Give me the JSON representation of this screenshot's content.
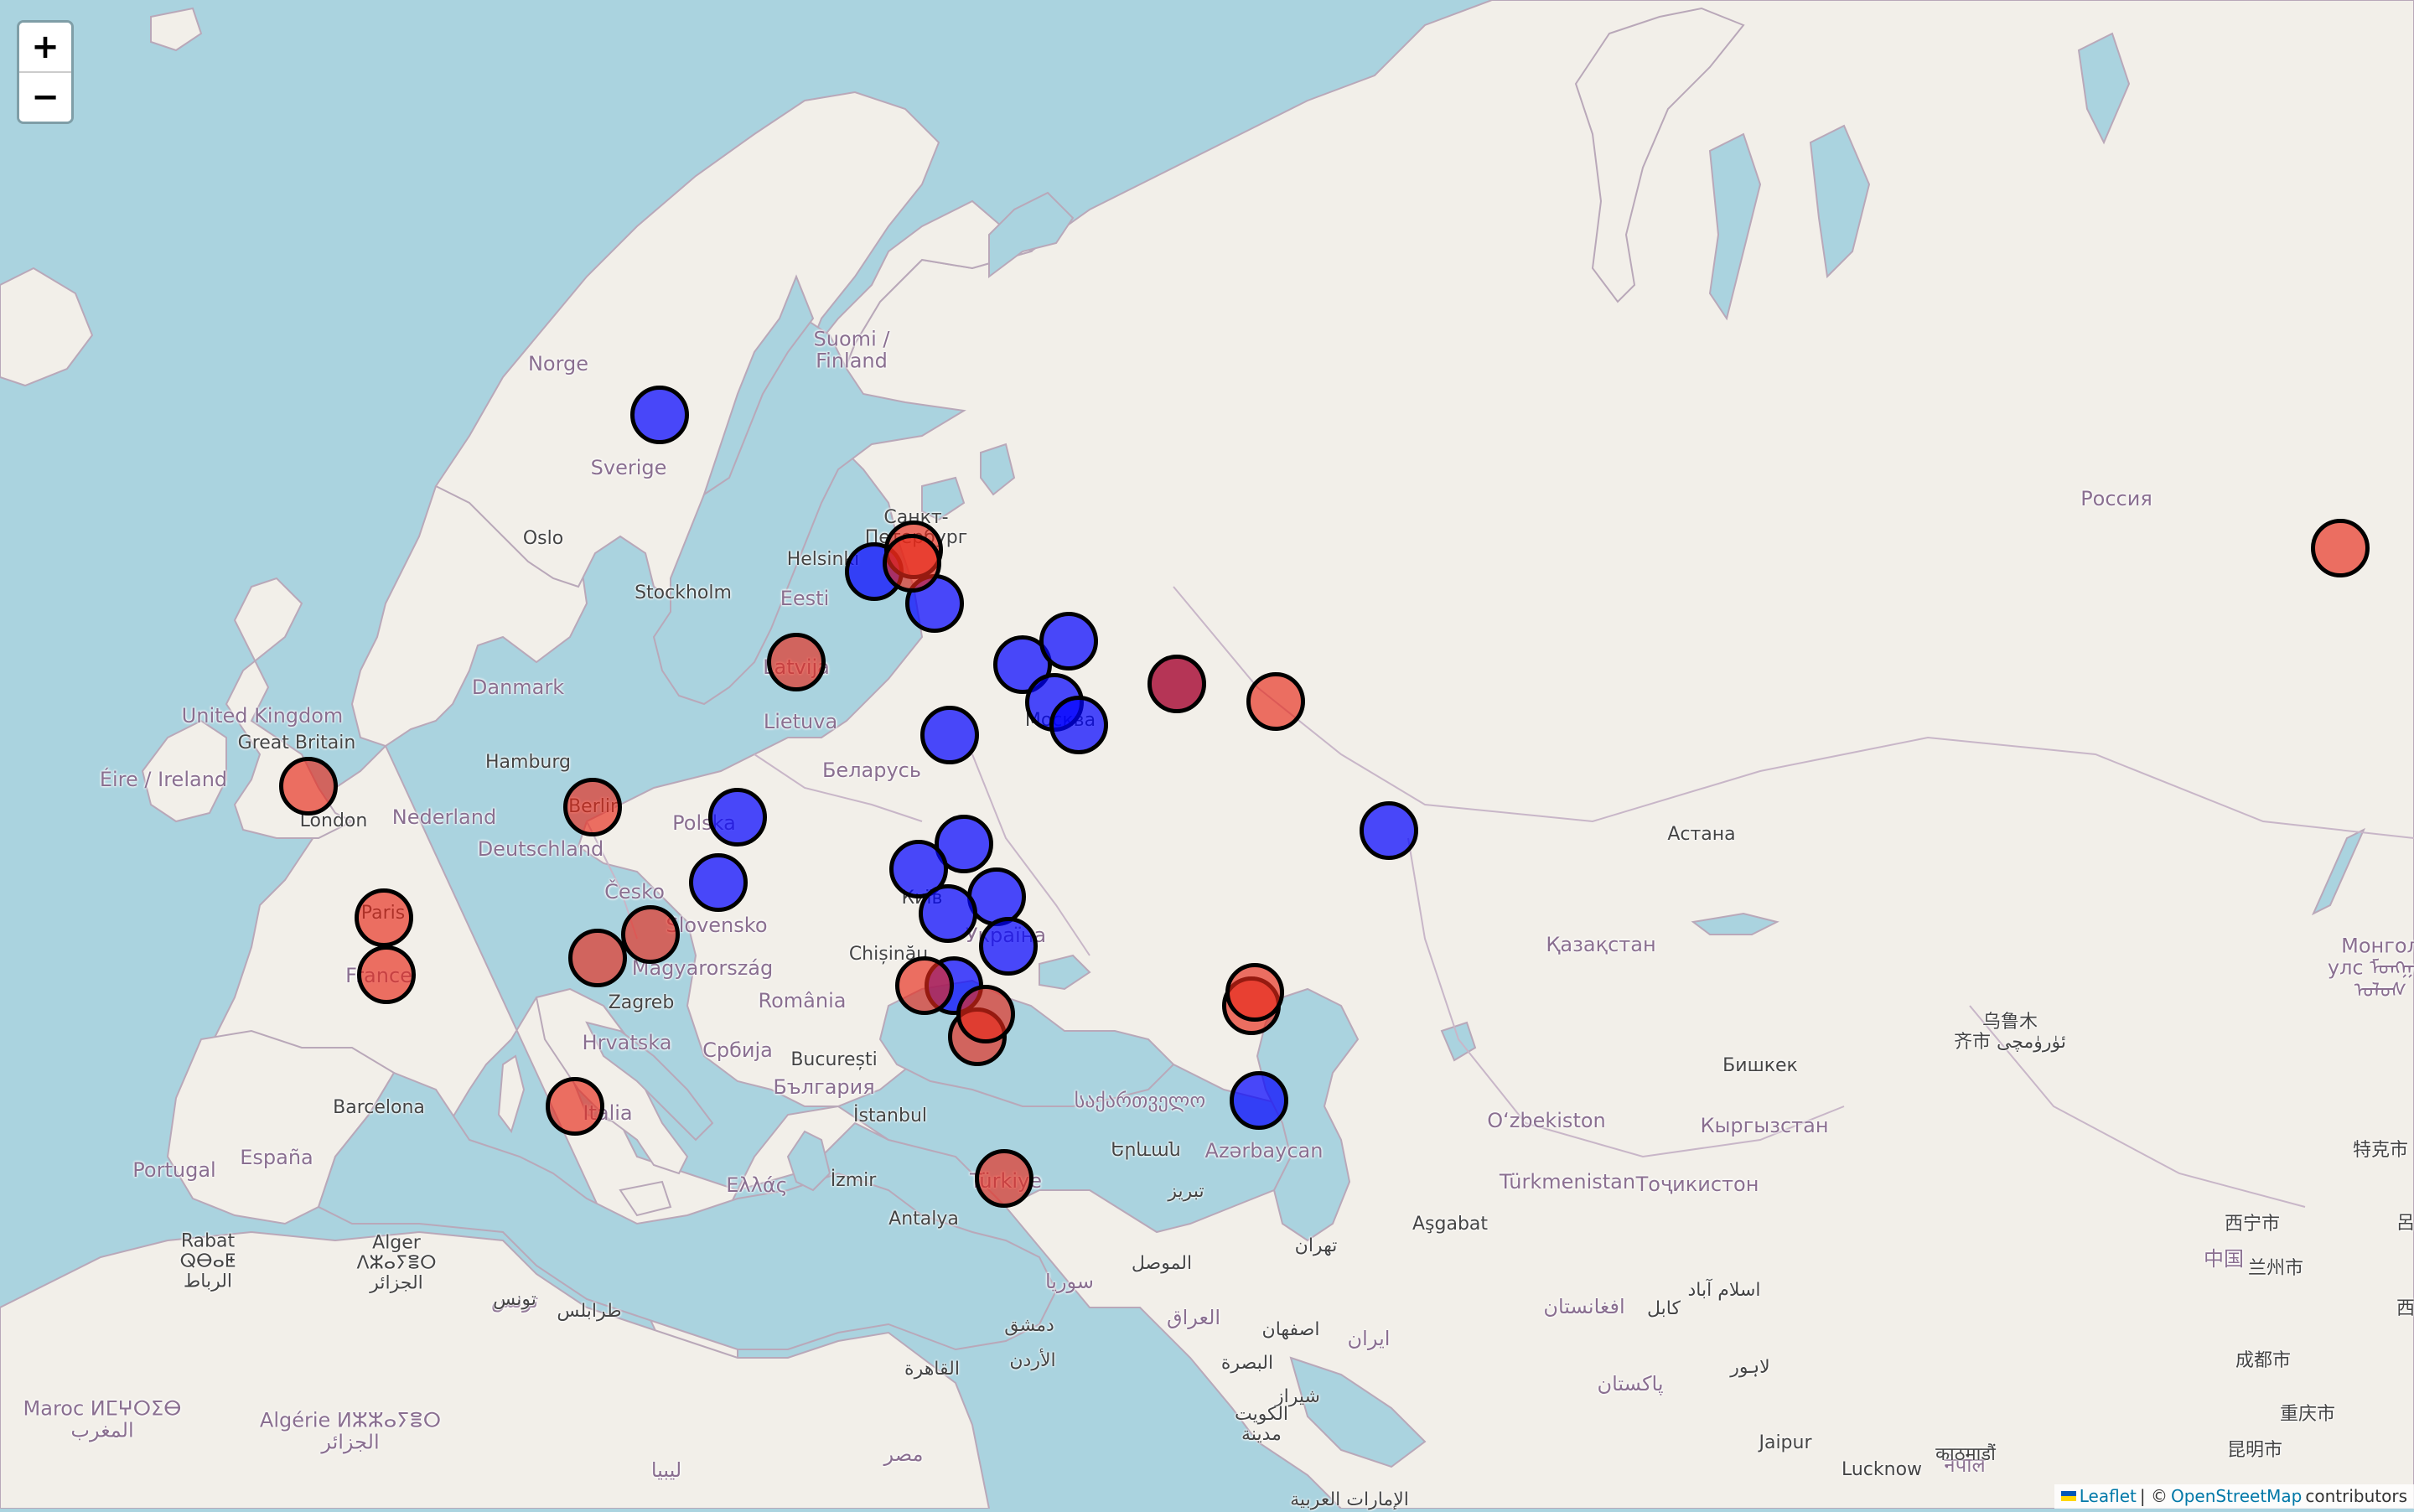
{
  "map": {
    "zoom_controls": {
      "zoom_in": "+",
      "zoom_out": "−"
    },
    "attribution": {
      "flag_icon": "ukraine-flag-icon",
      "leaflet": "Leaflet",
      "separator": " | © ",
      "osm": "OpenStreetMap",
      "contributors": "contributors"
    },
    "colors": {
      "blue_marker": "#0000ff",
      "red_marker": "#e62819",
      "purple_marker": "#aa143c"
    },
    "labels": [
      {
        "text": "Suomi /\nFinland",
        "kind": "country"
      },
      {
        "text": "Norge",
        "kind": "country"
      },
      {
        "text": "Sverige",
        "kind": "country"
      },
      {
        "text": "Eesti",
        "kind": "country"
      },
      {
        "text": "Latvija",
        "kind": "country"
      },
      {
        "text": "Lietuva",
        "kind": "country"
      },
      {
        "text": "Беларусь",
        "kind": "country"
      },
      {
        "text": "Polska",
        "kind": "country"
      },
      {
        "text": "Danmark",
        "kind": "country"
      },
      {
        "text": "United Kingdom",
        "kind": "country"
      },
      {
        "text": "Great Britain",
        "kind": "city"
      },
      {
        "text": "Éire / Ireland",
        "kind": "country"
      },
      {
        "text": "Nederland",
        "kind": "country"
      },
      {
        "text": "Deutschland",
        "kind": "country"
      },
      {
        "text": "Česko",
        "kind": "country"
      },
      {
        "text": "Slovensko",
        "kind": "country"
      },
      {
        "text": "Magyarország",
        "kind": "country"
      },
      {
        "text": "România",
        "kind": "country"
      },
      {
        "text": "Hrvatska",
        "kind": "country"
      },
      {
        "text": "Србија",
        "kind": "country"
      },
      {
        "text": "България",
        "kind": "country"
      },
      {
        "text": "France",
        "kind": "country"
      },
      {
        "text": "España",
        "kind": "country"
      },
      {
        "text": "Portugal",
        "kind": "country"
      },
      {
        "text": "Italia",
        "kind": "country"
      },
      {
        "text": "Ελλάς",
        "kind": "country"
      },
      {
        "text": "Türkiye",
        "kind": "country"
      },
      {
        "text": "Україна",
        "kind": "country"
      },
      {
        "text": "Россия",
        "kind": "country"
      },
      {
        "text": "Қазақстан",
        "kind": "country"
      },
      {
        "text": "Oʻzbekiston",
        "kind": "country"
      },
      {
        "text": "Кыргызстан",
        "kind": "country"
      },
      {
        "text": "Türkmenistan",
        "kind": "country"
      },
      {
        "text": "Тоҷикистон",
        "kind": "country"
      },
      {
        "text": "Azərbaycan",
        "kind": "country"
      },
      {
        "text": "საქართველო",
        "kind": "country"
      },
      {
        "text": "ایران",
        "kind": "country"
      },
      {
        "text": "العراق",
        "kind": "country"
      },
      {
        "text": "سوريا",
        "kind": "country"
      },
      {
        "text": "مصر",
        "kind": "country"
      },
      {
        "text": "ليبيا",
        "kind": "country"
      },
      {
        "text": "Algérie ⵍⵣⵣⴰⵢⴻⵔ\nالجزائر",
        "kind": "country"
      },
      {
        "text": "Maroc ⵍⵎⵖⵔⵉⴱ\nالمغرب",
        "kind": "country"
      },
      {
        "text": "تونس",
        "kind": "country"
      },
      {
        "text": "افغانستان",
        "kind": "country"
      },
      {
        "text": "پاکستان",
        "kind": "country"
      },
      {
        "text": "Монгол\nулс ᠮᠣᠩᠭᠣᠯ\nᠤᠯᠤᠰ",
        "kind": "country"
      },
      {
        "text": "中国",
        "kind": "country"
      },
      {
        "text": "नेपाल",
        "kind": "country"
      },
      {
        "text": "乌鲁木\n齐市 ئۈرۈمچى",
        "kind": "city"
      },
      {
        "text": "Санкт-\nПетербург",
        "kind": "city"
      },
      {
        "text": "Helsinki",
        "kind": "city"
      },
      {
        "text": "Oslo",
        "kind": "city"
      },
      {
        "text": "Stockholm",
        "kind": "city"
      },
      {
        "text": "Hamburg",
        "kind": "city"
      },
      {
        "text": "London",
        "kind": "city"
      },
      {
        "text": "Berlin",
        "kind": "city"
      },
      {
        "text": "Paris",
        "kind": "city"
      },
      {
        "text": "Zagreb",
        "kind": "city"
      },
      {
        "text": "Chișinău",
        "kind": "city"
      },
      {
        "text": "Київ",
        "kind": "city"
      },
      {
        "text": "București",
        "kind": "city"
      },
      {
        "text": "Barcelona",
        "kind": "city"
      },
      {
        "text": "İstanbul",
        "kind": "city"
      },
      {
        "text": "İzmir",
        "kind": "city"
      },
      {
        "text": "Antalya",
        "kind": "city"
      },
      {
        "text": "Երևան",
        "kind": "city"
      },
      {
        "text": "Москва",
        "kind": "city"
      },
      {
        "text": "Астана",
        "kind": "city"
      },
      {
        "text": "Бишкек",
        "kind": "city"
      },
      {
        "text": "Aşgabat",
        "kind": "city"
      },
      {
        "text": "Rabat\nⵕⴱⴰⵟ\nالرباط",
        "kind": "city"
      },
      {
        "text": "Alger\nⴷⵣⴰⵢⴻⵔ\nالجزائر",
        "kind": "city"
      },
      {
        "text": "تونس",
        "kind": "city"
      },
      {
        "text": "طرابلس",
        "kind": "city"
      },
      {
        "text": "القاهرة",
        "kind": "city"
      },
      {
        "text": "دمشق",
        "kind": "city"
      },
      {
        "text": "الأردن",
        "kind": "city"
      },
      {
        "text": "الموصل",
        "kind": "city"
      },
      {
        "text": "تبريز",
        "kind": "city"
      },
      {
        "text": "تهران",
        "kind": "city"
      },
      {
        "text": "اصفهان",
        "kind": "city"
      },
      {
        "text": "البصرة",
        "kind": "city"
      },
      {
        "text": "شیراز",
        "kind": "city"
      },
      {
        "text": "الكويت\nمدينة",
        "kind": "city"
      },
      {
        "text": "الإمارات العربية",
        "kind": "city"
      },
      {
        "text": "كابل",
        "kind": "city"
      },
      {
        "text": "اسلام آباد",
        "kind": "city"
      },
      {
        "text": "لاہور",
        "kind": "city"
      },
      {
        "text": "Jaipur",
        "kind": "city"
      },
      {
        "text": "Lucknow",
        "kind": "city"
      },
      {
        "text": "काठमाडौं",
        "kind": "city"
      },
      {
        "text": "西宁市",
        "kind": "city"
      },
      {
        "text": "兰州市",
        "kind": "city"
      },
      {
        "text": "成都市",
        "kind": "city"
      },
      {
        "text": "重庆市",
        "kind": "city"
      },
      {
        "text": "昆明市",
        "kind": "city"
      },
      {
        "text": "特克市",
        "kind": "city"
      },
      {
        "text": "呂",
        "kind": "city"
      },
      {
        "text": "西",
        "kind": "city"
      }
    ]
  }
}
